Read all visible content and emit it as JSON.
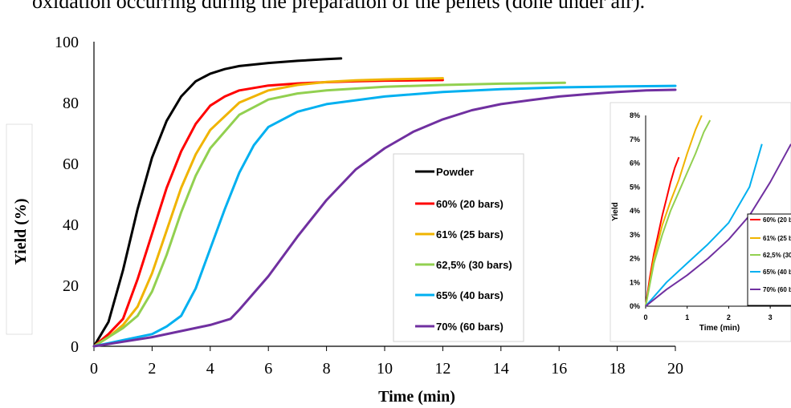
{
  "page": {
    "top_text": "oxidation occurring during the preparation of the pellets (done under air)."
  },
  "chart_data": [
    {
      "type": "line",
      "xlabel": "Time (min)",
      "ylabel": "Yield (%)",
      "xlim": [
        0,
        20
      ],
      "ylim": [
        0,
        100
      ],
      "x_ticks": [
        "0",
        "2",
        "4",
        "6",
        "8",
        "10",
        "12",
        "14",
        "16",
        "18",
        "20"
      ],
      "y_ticks": [
        "0",
        "20",
        "40",
        "60",
        "80",
        "100"
      ],
      "grid": false,
      "legend_position": "inside-center",
      "series": [
        {
          "name": "Powder",
          "color": "#000000",
          "x": [
            0,
            0.5,
            1,
            1.5,
            2,
            2.5,
            3,
            3.5,
            4,
            4.5,
            5,
            6,
            7,
            8,
            8.5
          ],
          "y": [
            0,
            8,
            25,
            45,
            62,
            74,
            82,
            87,
            89.5,
            91,
            92,
            93,
            93.7,
            94.3,
            94.5
          ]
        },
        {
          "name": "60% (20 bars)",
          "color": "#ff0000",
          "x": [
            0,
            0.5,
            1,
            1.5,
            2,
            2.5,
            3,
            3.5,
            4,
            4.5,
            5,
            6,
            7,
            8,
            9,
            10,
            11,
            12
          ],
          "y": [
            0,
            4,
            9,
            22,
            37,
            52,
            64,
            73,
            79,
            82,
            84,
            85.6,
            86.3,
            86.7,
            87,
            87.2,
            87.3,
            87.4
          ]
        },
        {
          "name": "61% (25 bars)",
          "color": "#f0b400",
          "x": [
            0,
            0.5,
            1,
            1.5,
            2,
            2.5,
            3,
            3.5,
            4,
            5,
            6,
            7,
            8,
            9,
            10,
            11,
            12
          ],
          "y": [
            0,
            3,
            7,
            13,
            24,
            38,
            52,
            63,
            71,
            80,
            84,
            85.8,
            86.8,
            87.3,
            87.6,
            87.8,
            88
          ]
        },
        {
          "name": "62,5% (30 bars)",
          "color": "#92d050",
          "x": [
            0,
            0.5,
            1,
            1.5,
            2,
            2.5,
            3,
            3.5,
            4,
            5,
            6,
            7,
            8,
            10,
            12,
            14,
            16.2
          ],
          "y": [
            0,
            3,
            6,
            10,
            18,
            30,
            44,
            56,
            65,
            76,
            81,
            83,
            84,
            85.2,
            85.8,
            86.2,
            86.5
          ]
        },
        {
          "name": "65% (40 bars)",
          "color": "#00b0f0",
          "x": [
            0,
            1,
            2,
            2.5,
            3,
            3.5,
            4,
            4.5,
            5,
            5.5,
            6,
            7,
            8,
            10,
            12,
            14,
            16,
            18,
            20
          ],
          "y": [
            0,
            2,
            4,
            6.5,
            10,
            19,
            32,
            45,
            57,
            66,
            72,
            77,
            79.5,
            82,
            83.5,
            84.4,
            85,
            85.3,
            85.5
          ]
        },
        {
          "name": "70% (60 bars)",
          "color": "#7030a0",
          "x": [
            0,
            1,
            2,
            3,
            4,
            4.7,
            5,
            6,
            7,
            8,
            9,
            10,
            11,
            12,
            13,
            14,
            15,
            16,
            17,
            18,
            19,
            20
          ],
          "y": [
            0,
            1.5,
            3,
            5,
            7,
            9,
            12,
            23,
            36,
            48,
            58,
            65,
            70.5,
            74.5,
            77.5,
            79.5,
            80.8,
            82,
            82.8,
            83.5,
            84,
            84.2
          ]
        }
      ]
    },
    {
      "type": "line",
      "xlabel": "Time (min)",
      "ylabel": "Yield",
      "xlim": [
        0,
        3.5
      ],
      "ylim": [
        0,
        8
      ],
      "x_ticks": [
        "0",
        "1",
        "2",
        "3"
      ],
      "y_ticks": [
        "0%",
        "1%",
        "2%",
        "3%",
        "4%",
        "5%",
        "6%",
        "7%",
        "8%"
      ],
      "legend_position": "right",
      "series": [
        {
          "name": "60% (20 bars)",
          "color": "#ff0000",
          "x": [
            0,
            0.1,
            0.2,
            0.3,
            0.4,
            0.5,
            0.6,
            0.7,
            0.8
          ],
          "y": [
            0,
            1.2,
            2.2,
            3.0,
            3.8,
            4.5,
            5.2,
            5.8,
            6.25
          ]
        },
        {
          "name": "61% (25 bars)",
          "color": "#f0b400",
          "x": [
            0,
            0.2,
            0.4,
            0.6,
            0.8,
            1.0,
            1.2,
            1.35
          ],
          "y": [
            0,
            2.0,
            3.4,
            4.4,
            5.3,
            6.4,
            7.4,
            8.0
          ]
        },
        {
          "name": "62,5% (30 bars)",
          "color": "#92d050",
          "x": [
            0,
            0.2,
            0.4,
            0.6,
            0.8,
            1.0,
            1.2,
            1.4,
            1.55
          ],
          "y": [
            0,
            1.8,
            3.0,
            4.0,
            4.8,
            5.6,
            6.4,
            7.3,
            7.8
          ]
        },
        {
          "name": "65% (40 bars)",
          "color": "#00b0f0",
          "x": [
            0,
            0.5,
            1.0,
            1.5,
            2.0,
            2.5,
            2.8
          ],
          "y": [
            0,
            1.0,
            1.8,
            2.6,
            3.5,
            5.0,
            6.8
          ]
        },
        {
          "name": "70% (60 bars)",
          "color": "#7030a0",
          "x": [
            0,
            0.5,
            1.0,
            1.5,
            2.0,
            2.5,
            3.0,
            3.5
          ],
          "y": [
            0,
            0.7,
            1.3,
            2.0,
            2.8,
            3.8,
            5.2,
            6.8
          ]
        }
      ]
    }
  ]
}
